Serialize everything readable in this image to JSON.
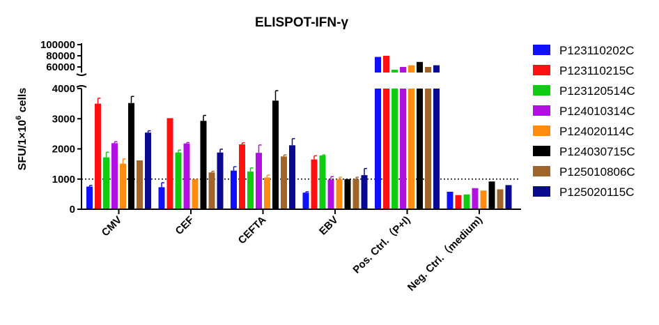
{
  "chart_data": {
    "type": "bar",
    "title": "ELISPOT-IFN-γ",
    "ylabel": {
      "prefix": "SFU/1",
      "times": "×",
      "base": "10",
      "exp": "6",
      "suffix": " cells"
    },
    "y_ticks_lower": [
      "0",
      "1000",
      "2000",
      "3000",
      "4000"
    ],
    "y_ticks_upper": [
      "60000",
      "80000",
      "100000"
    ],
    "ylim_lower": [
      0,
      4000
    ],
    "ylim_upper": [
      50000,
      100000
    ],
    "reference_line": 1000,
    "categories": [
      "CMV",
      "CEF",
      "CEFTA",
      "EBV",
      "Pos. Ctrl.（P+I)",
      "Neg. Ctrl.（medium)"
    ],
    "legend_position": "right",
    "series": [
      {
        "name": "P123110202C",
        "color": "#1010ff",
        "values": [
          750,
          730,
          1280,
          550,
          78000,
          580
        ],
        "errors": [
          40,
          150,
          130,
          30,
          0,
          0
        ]
      },
      {
        "name": "P123110215C",
        "color": "#ff1010",
        "values": [
          3500,
          3020,
          2150,
          1650,
          80000,
          470
        ],
        "errors": [
          180,
          0,
          50,
          120,
          0,
          0
        ]
      },
      {
        "name": "P123120514C",
        "color": "#10cc10",
        "values": [
          1720,
          1880,
          1250,
          1780,
          55000,
          490
        ],
        "errors": [
          170,
          80,
          120,
          20,
          0,
          0
        ]
      },
      {
        "name": "P124010314C",
        "color": "#b010e0",
        "values": [
          2190,
          2180,
          1870,
          980,
          60000,
          700
        ],
        "errors": [
          50,
          30,
          260,
          100,
          0,
          0
        ]
      },
      {
        "name": "P124020114C",
        "color": "#ff8c10",
        "values": [
          1510,
          1000,
          1050,
          1000,
          63000,
          620
        ],
        "errors": [
          160,
          0,
          80,
          60,
          0,
          0
        ]
      },
      {
        "name": "P124030715C",
        "color": "#000000",
        "values": [
          3520,
          2930,
          3600,
          1000,
          69000,
          920
        ],
        "errors": [
          220,
          180,
          330,
          0,
          0,
          0
        ]
      },
      {
        "name": "P125010806C",
        "color": "#a0652a",
        "values": [
          1620,
          1220,
          1750,
          1000,
          60000,
          660
        ],
        "errors": [
          0,
          40,
          50,
          60,
          0,
          0
        ]
      },
      {
        "name": "P125020115C",
        "color": "#0a0a90",
        "values": [
          2540,
          1880,
          2120,
          1130,
          63000,
          800
        ],
        "errors": [
          60,
          110,
          220,
          220,
          0,
          0
        ]
      }
    ]
  }
}
